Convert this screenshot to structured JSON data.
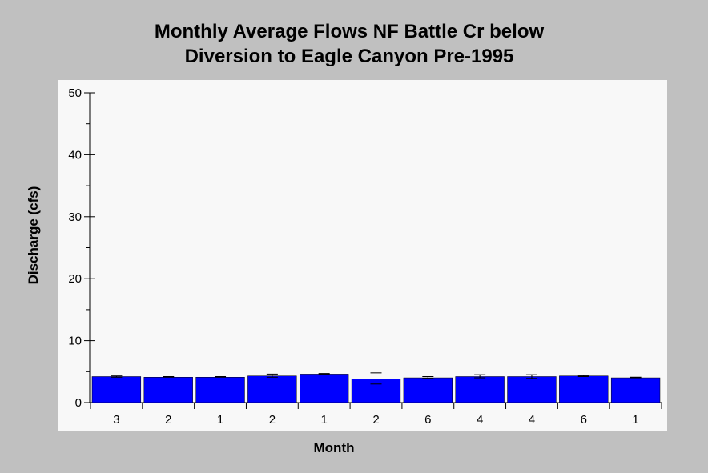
{
  "chart_data": {
    "type": "bar",
    "title_lines": [
      "Monthly Average Flows NF Battle Cr below",
      "Diversion to Eagle Canyon Pre-1995"
    ],
    "xlabel": "Month",
    "ylabel": "Discharge (cfs)",
    "ylim": [
      0,
      50
    ],
    "yticks": [
      0,
      10,
      20,
      30,
      40,
      50
    ],
    "y_minor_step": 5,
    "categories": [
      "3",
      "2",
      "1",
      "2",
      "1",
      "2",
      "6",
      "4",
      "4",
      "6",
      "1"
    ],
    "values": [
      4.2,
      4.1,
      4.1,
      4.3,
      4.6,
      3.8,
      4.0,
      4.2,
      4.2,
      4.3,
      4.0
    ],
    "error_low": [
      4.1,
      4.1,
      4.1,
      4.1,
      4.6,
      3.0,
      3.9,
      4.0,
      3.9,
      4.2,
      4.0
    ],
    "error_high": [
      4.3,
      4.2,
      4.2,
      4.6,
      4.7,
      4.8,
      4.2,
      4.5,
      4.5,
      4.4,
      4.1
    ],
    "bar_color": "#0000ff",
    "plot_background": "#f8f8f8",
    "page_background": "#c0c0c0",
    "grid": false,
    "legend": "none"
  }
}
